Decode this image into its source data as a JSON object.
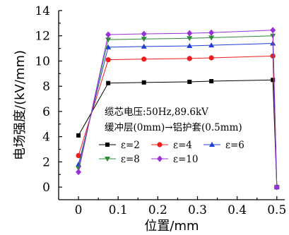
{
  "chart_data": {
    "type": "line",
    "xlabel": "位置/mm",
    "ylabel": "电场强度/(kV/mm)",
    "xlim": [
      -0.05,
      0.52
    ],
    "ylim": [
      -1,
      14
    ],
    "xticks": [
      "0",
      "0.1",
      "0.2",
      "0.3",
      "0.4",
      "0.5"
    ],
    "xtick_values": [
      0,
      0.1,
      0.2,
      0.3,
      0.4,
      0.5
    ],
    "yticks": [
      "0",
      "2",
      "4",
      "6",
      "8",
      "10",
      "12",
      "14"
    ],
    "ytick_values": [
      0,
      2,
      4,
      6,
      8,
      10,
      12,
      14
    ],
    "annotations": [
      "缆芯电压:50Hz,89.6kV",
      "缓冲层(0mm)→铝护套(0.5mm)"
    ],
    "legend_position": "inside-lower-center",
    "x": [
      0,
      0.075,
      0.165,
      0.28,
      0.335,
      0.49,
      0.5
    ],
    "series": [
      {
        "name": "ε=2",
        "color": "#000000",
        "marker": "square",
        "values": [
          4.1,
          8.25,
          8.3,
          8.35,
          8.4,
          8.5,
          0
        ]
      },
      {
        "name": "ε=4",
        "color": "#ee1c1c",
        "marker": "circle",
        "values": [
          2.5,
          10.1,
          10.15,
          10.2,
          10.25,
          10.4,
          0
        ]
      },
      {
        "name": "ε=6",
        "color": "#1f3fd4",
        "marker": "triangle-up",
        "values": [
          1.8,
          11.1,
          11.15,
          11.2,
          11.25,
          11.4,
          0
        ]
      },
      {
        "name": "ε=8",
        "color": "#2e8b3a",
        "marker": "triangle-down",
        "values": [
          1.5,
          11.7,
          11.75,
          11.8,
          11.85,
          12.0,
          0
        ]
      },
      {
        "name": "ε=10",
        "color": "#9b30d9",
        "marker": "diamond",
        "values": [
          1.2,
          12.1,
          12.15,
          12.2,
          12.25,
          12.45,
          0
        ]
      }
    ]
  }
}
